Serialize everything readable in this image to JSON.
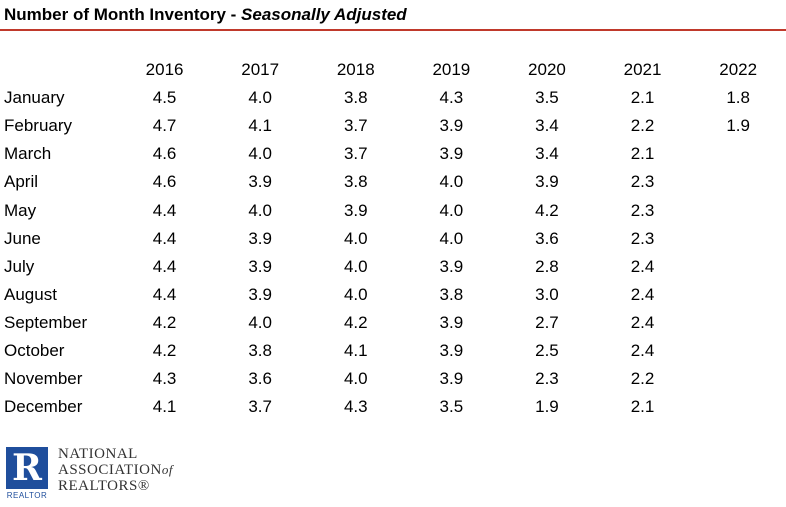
{
  "title": {
    "main": "Number of Month Inventory - ",
    "sub": "Seasonally Adjusted"
  },
  "chart_data": {
    "type": "table",
    "columns": [
      "2016",
      "2017",
      "2018",
      "2019",
      "2020",
      "2021",
      "2022"
    ],
    "rows": [
      {
        "label": "January",
        "values": [
          "4.5",
          "4.0",
          "3.8",
          "4.3",
          "3.5",
          "2.1",
          "1.8"
        ]
      },
      {
        "label": "February",
        "values": [
          "4.7",
          "4.1",
          "3.7",
          "3.9",
          "3.4",
          "2.2",
          "1.9"
        ]
      },
      {
        "label": "March",
        "values": [
          "4.6",
          "4.0",
          "3.7",
          "3.9",
          "3.4",
          "2.1",
          ""
        ]
      },
      {
        "label": "April",
        "values": [
          "4.6",
          "3.9",
          "3.8",
          "4.0",
          "3.9",
          "2.3",
          ""
        ]
      },
      {
        "label": "May",
        "values": [
          "4.4",
          "4.0",
          "3.9",
          "4.0",
          "4.2",
          "2.3",
          ""
        ]
      },
      {
        "label": "June",
        "values": [
          "4.4",
          "3.9",
          "4.0",
          "4.0",
          "3.6",
          "2.3",
          ""
        ]
      },
      {
        "label": "July",
        "values": [
          "4.4",
          "3.9",
          "4.0",
          "3.9",
          "2.8",
          "2.4",
          ""
        ]
      },
      {
        "label": "August",
        "values": [
          "4.4",
          "3.9",
          "4.0",
          "3.8",
          "3.0",
          "2.4",
          ""
        ]
      },
      {
        "label": "September",
        "values": [
          "4.2",
          "4.0",
          "4.2",
          "3.9",
          "2.7",
          "2.4",
          ""
        ]
      },
      {
        "label": "October",
        "values": [
          "4.2",
          "3.8",
          "4.1",
          "3.9",
          "2.5",
          "2.4",
          ""
        ]
      },
      {
        "label": "November",
        "values": [
          "4.3",
          "3.6",
          "4.0",
          "3.9",
          "2.3",
          "2.2",
          ""
        ]
      },
      {
        "label": "December",
        "values": [
          "4.1",
          "3.7",
          "4.3",
          "3.5",
          "1.9",
          "2.1",
          ""
        ]
      }
    ]
  },
  "logo": {
    "mark": "R",
    "caption": "REALTOR",
    "line1": "NATIONAL",
    "line2": "ASSOCIATION",
    "line2_suffix": "of",
    "line3": "REALTORS®"
  },
  "colors": {
    "rule": "#c0392b",
    "logo_blue": "#1f4e9c"
  }
}
